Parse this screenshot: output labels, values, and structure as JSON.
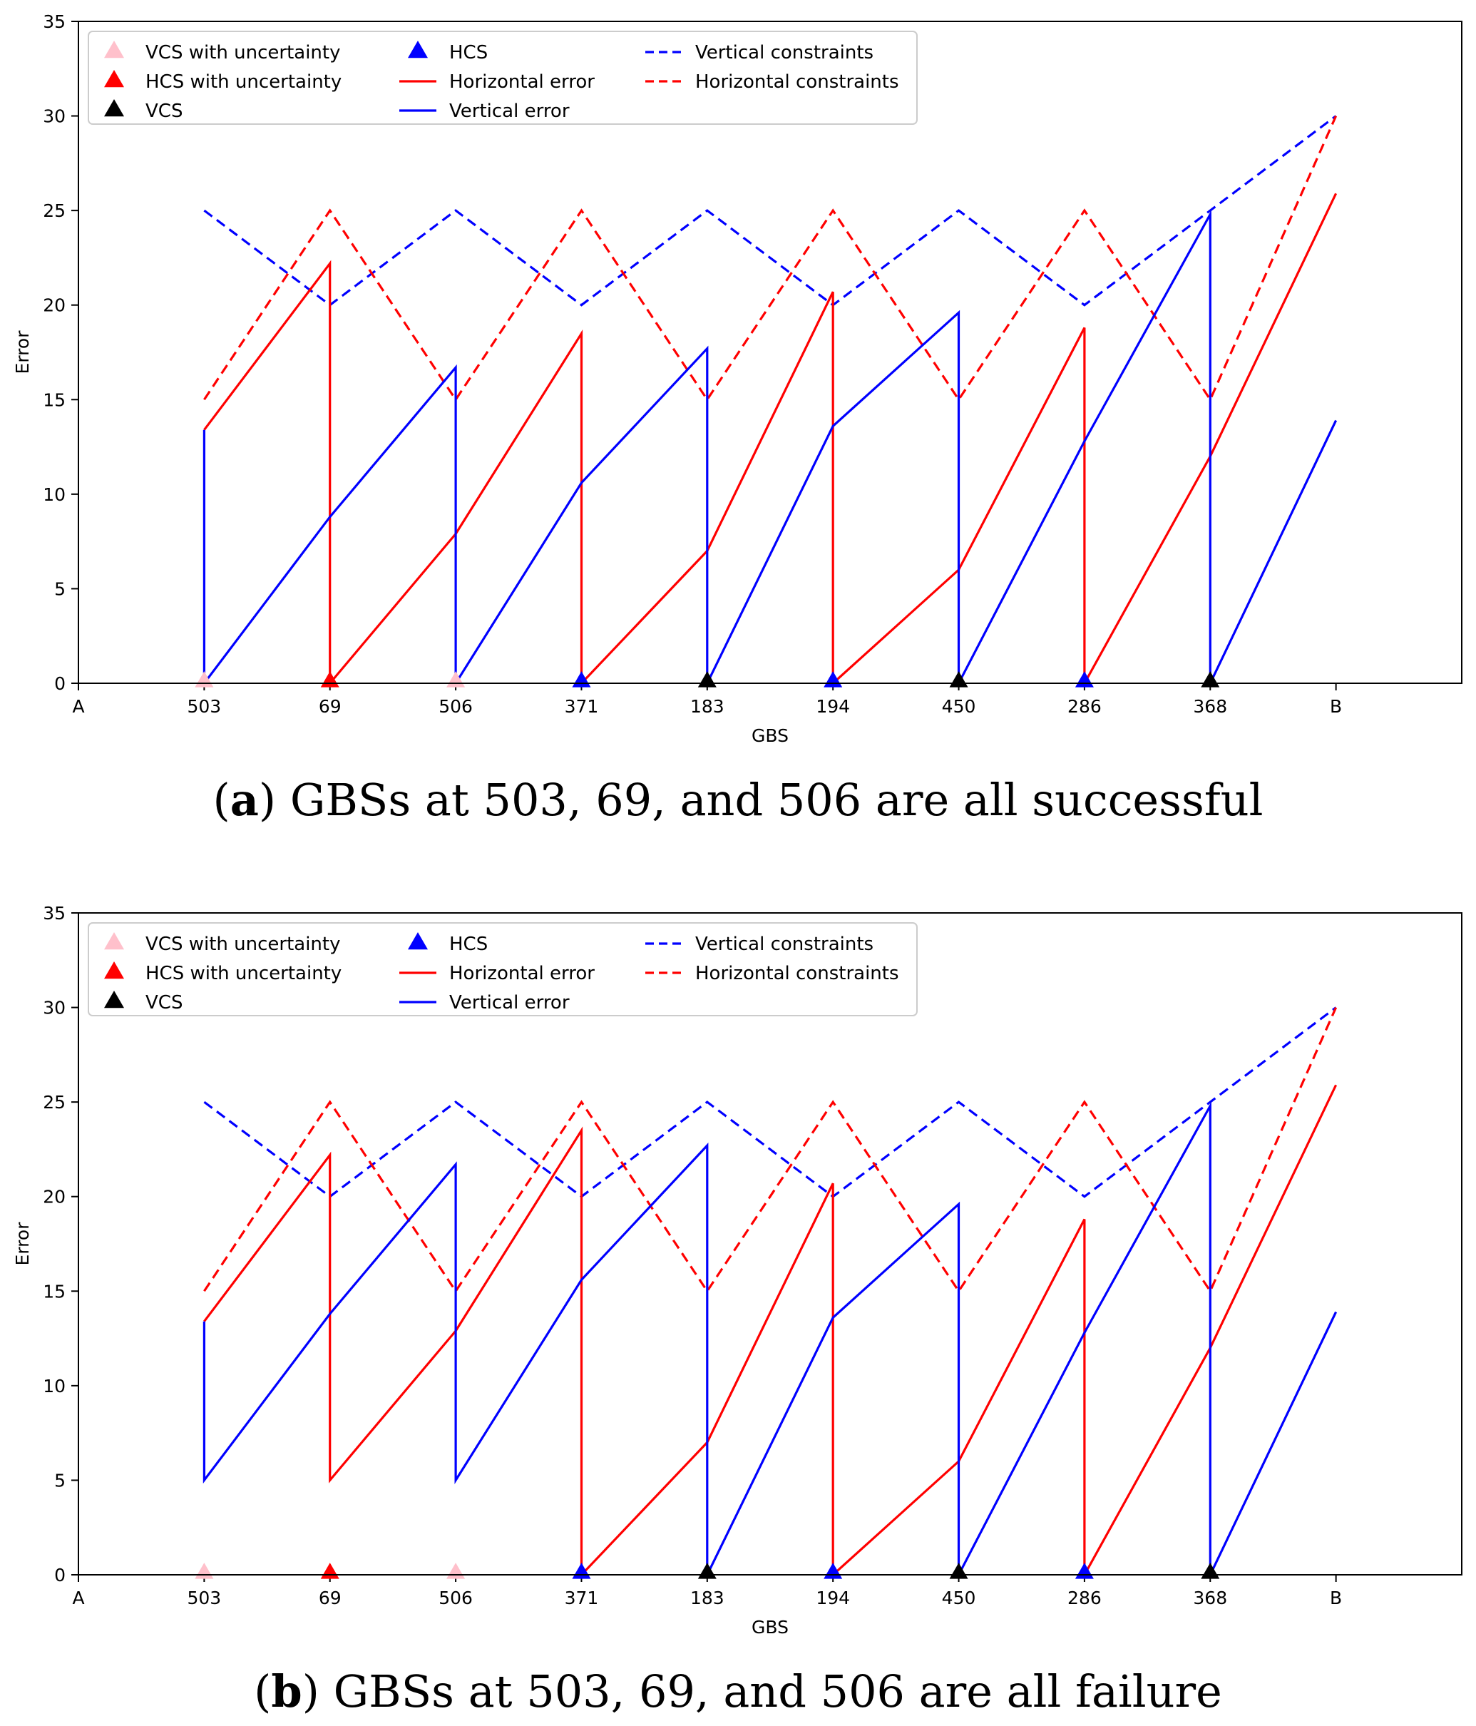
{
  "chart_data": [
    {
      "type": "line",
      "panel_label": "a",
      "caption": "GBSs at 503, 69, and 506 are all successful",
      "xlabel": "GBS",
      "ylabel": "Error",
      "categories": [
        "A",
        "503",
        "69",
        "506",
        "371",
        "183",
        "194",
        "450",
        "286",
        "368",
        "B"
      ],
      "ylim": [
        0,
        35
      ],
      "yticks": [
        0,
        5,
        10,
        15,
        20,
        25,
        30,
        35
      ],
      "legend": {
        "position": "top-left",
        "entries": [
          {
            "label": "VCS with uncertainty",
            "kind": "marker",
            "color": "#ffc0cb"
          },
          {
            "label": "HCS with uncertainty",
            "kind": "marker",
            "color": "#ff0000"
          },
          {
            "label": "VCS",
            "kind": "marker",
            "color": "#000000"
          },
          {
            "label": "HCS",
            "kind": "marker",
            "color": "#0000ff"
          },
          {
            "label": "Horizontal error",
            "kind": "line",
            "color": "#ff0000"
          },
          {
            "label": "Vertical error",
            "kind": "line",
            "color": "#0000ff"
          },
          {
            "label": "Vertical constraints",
            "kind": "dash",
            "color": "#0000ff"
          },
          {
            "label": "Horizontal constraints",
            "kind": "dash",
            "color": "#ff0000"
          }
        ]
      },
      "series": [
        {
          "name": "Vertical constraints",
          "style": "dash",
          "color": "#0000ff",
          "points": [
            [
              1,
              25
            ],
            [
              2,
              20
            ],
            [
              3,
              25
            ],
            [
              4,
              20
            ],
            [
              5,
              25
            ],
            [
              6,
              20
            ],
            [
              7,
              25
            ],
            [
              8,
              20
            ],
            [
              9,
              25
            ],
            [
              10,
              30
            ]
          ]
        },
        {
          "name": "Horizontal constraints",
          "style": "dash",
          "color": "#ff0000",
          "points": [
            [
              1,
              15
            ],
            [
              2,
              25
            ],
            [
              3,
              15
            ],
            [
              4,
              25
            ],
            [
              5,
              15
            ],
            [
              6,
              25
            ],
            [
              7,
              15
            ],
            [
              8,
              25
            ],
            [
              9,
              15
            ],
            [
              10,
              30
            ]
          ]
        },
        {
          "name": "Horizontal error",
          "style": "solid",
          "color": "#ff0000",
          "points": [
            [
              1,
              13.4
            ],
            [
              2,
              22.2
            ],
            [
              2,
              0
            ],
            [
              3,
              7.9
            ],
            [
              4,
              18.5
            ],
            [
              4,
              0
            ],
            [
              5,
              7.0
            ],
            [
              6,
              20.7
            ],
            [
              6,
              0
            ],
            [
              7,
              6.0
            ],
            [
              8,
              18.8
            ],
            [
              8,
              0
            ],
            [
              9,
              12.0
            ],
            [
              10,
              25.9
            ]
          ]
        },
        {
          "name": "Vertical error",
          "style": "solid",
          "color": "#0000ff",
          "points": [
            [
              1,
              13.4
            ],
            [
              1,
              0
            ],
            [
              2,
              8.8
            ],
            [
              3,
              16.7
            ],
            [
              3,
              0
            ],
            [
              4,
              10.6
            ],
            [
              5,
              17.7
            ],
            [
              5,
              0
            ],
            [
              6,
              13.6
            ],
            [
              7,
              19.6
            ],
            [
              7,
              0
            ],
            [
              8,
              12.8
            ],
            [
              9,
              24.8
            ],
            [
              9,
              0
            ],
            [
              10,
              13.9
            ]
          ]
        }
      ],
      "markers": [
        {
          "x": 1,
          "y": 0,
          "type": "VCS with uncertainty",
          "color": "#ffc0cb"
        },
        {
          "x": 2,
          "y": 0,
          "type": "HCS with uncertainty",
          "color": "#ff0000"
        },
        {
          "x": 3,
          "y": 0,
          "type": "VCS with uncertainty",
          "color": "#ffc0cb"
        },
        {
          "x": 4,
          "y": 0,
          "type": "HCS",
          "color": "#0000ff"
        },
        {
          "x": 5,
          "y": 0,
          "type": "VCS",
          "color": "#000000"
        },
        {
          "x": 6,
          "y": 0,
          "type": "HCS",
          "color": "#0000ff"
        },
        {
          "x": 7,
          "y": 0,
          "type": "VCS",
          "color": "#000000"
        },
        {
          "x": 8,
          "y": 0,
          "type": "HCS",
          "color": "#0000ff"
        },
        {
          "x": 9,
          "y": 0,
          "type": "VCS",
          "color": "#000000"
        }
      ]
    },
    {
      "type": "line",
      "panel_label": "b",
      "caption": "GBSs at 503, 69, and 506 are all failure",
      "xlabel": "GBS",
      "ylabel": "Error",
      "categories": [
        "A",
        "503",
        "69",
        "506",
        "371",
        "183",
        "194",
        "450",
        "286",
        "368",
        "B"
      ],
      "ylim": [
        0,
        35
      ],
      "yticks": [
        0,
        5,
        10,
        15,
        20,
        25,
        30,
        35
      ],
      "legend": {
        "position": "top-left",
        "entries": [
          {
            "label": "VCS with uncertainty",
            "kind": "marker",
            "color": "#ffc0cb"
          },
          {
            "label": "HCS with uncertainty",
            "kind": "marker",
            "color": "#ff0000"
          },
          {
            "label": "VCS",
            "kind": "marker",
            "color": "#000000"
          },
          {
            "label": "HCS",
            "kind": "marker",
            "color": "#0000ff"
          },
          {
            "label": "Horizontal error",
            "kind": "line",
            "color": "#ff0000"
          },
          {
            "label": "Vertical error",
            "kind": "line",
            "color": "#0000ff"
          },
          {
            "label": "Vertical constraints",
            "kind": "dash",
            "color": "#0000ff"
          },
          {
            "label": "Horizontal constraints",
            "kind": "dash",
            "color": "#ff0000"
          }
        ]
      },
      "series": [
        {
          "name": "Vertical constraints",
          "style": "dash",
          "color": "#0000ff",
          "points": [
            [
              1,
              25
            ],
            [
              2,
              20
            ],
            [
              3,
              25
            ],
            [
              4,
              20
            ],
            [
              5,
              25
            ],
            [
              6,
              20
            ],
            [
              7,
              25
            ],
            [
              8,
              20
            ],
            [
              9,
              25
            ],
            [
              10,
              30
            ]
          ]
        },
        {
          "name": "Horizontal constraints",
          "style": "dash",
          "color": "#ff0000",
          "points": [
            [
              1,
              15
            ],
            [
              2,
              25
            ],
            [
              3,
              15
            ],
            [
              4,
              25
            ],
            [
              5,
              15
            ],
            [
              6,
              25
            ],
            [
              7,
              15
            ],
            [
              8,
              25
            ],
            [
              9,
              15
            ],
            [
              10,
              30
            ]
          ]
        },
        {
          "name": "Horizontal error",
          "style": "solid",
          "color": "#ff0000",
          "points": [
            [
              1,
              13.4
            ],
            [
              2,
              22.2
            ],
            [
              2,
              5.0
            ],
            [
              3,
              12.9
            ],
            [
              4,
              23.5
            ],
            [
              4,
              0
            ],
            [
              5,
              7.0
            ],
            [
              6,
              20.7
            ],
            [
              6,
              0
            ],
            [
              7,
              6.0
            ],
            [
              8,
              18.8
            ],
            [
              8,
              0
            ],
            [
              9,
              12.0
            ],
            [
              10,
              25.9
            ]
          ]
        },
        {
          "name": "Vertical error",
          "style": "solid",
          "color": "#0000ff",
          "points": [
            [
              1,
              13.4
            ],
            [
              1,
              5.0
            ],
            [
              2,
              13.8
            ],
            [
              3,
              21.7
            ],
            [
              3,
              5.0
            ],
            [
              4,
              15.6
            ],
            [
              5,
              22.7
            ],
            [
              5,
              0
            ],
            [
              6,
              13.6
            ],
            [
              7,
              19.6
            ],
            [
              7,
              0
            ],
            [
              8,
              12.8
            ],
            [
              9,
              24.8
            ],
            [
              9,
              0
            ],
            [
              10,
              13.9
            ]
          ]
        }
      ],
      "markers": [
        {
          "x": 1,
          "y": 0,
          "type": "VCS with uncertainty",
          "color": "#ffc0cb"
        },
        {
          "x": 2,
          "y": 0,
          "type": "HCS with uncertainty",
          "color": "#ff0000"
        },
        {
          "x": 3,
          "y": 0,
          "type": "VCS with uncertainty",
          "color": "#ffc0cb"
        },
        {
          "x": 4,
          "y": 0,
          "type": "HCS",
          "color": "#0000ff"
        },
        {
          "x": 5,
          "y": 0,
          "type": "VCS",
          "color": "#000000"
        },
        {
          "x": 6,
          "y": 0,
          "type": "HCS",
          "color": "#0000ff"
        },
        {
          "x": 7,
          "y": 0,
          "type": "VCS",
          "color": "#000000"
        },
        {
          "x": 8,
          "y": 0,
          "type": "HCS",
          "color": "#0000ff"
        },
        {
          "x": 9,
          "y": 0,
          "type": "VCS",
          "color": "#000000"
        }
      ]
    }
  ]
}
